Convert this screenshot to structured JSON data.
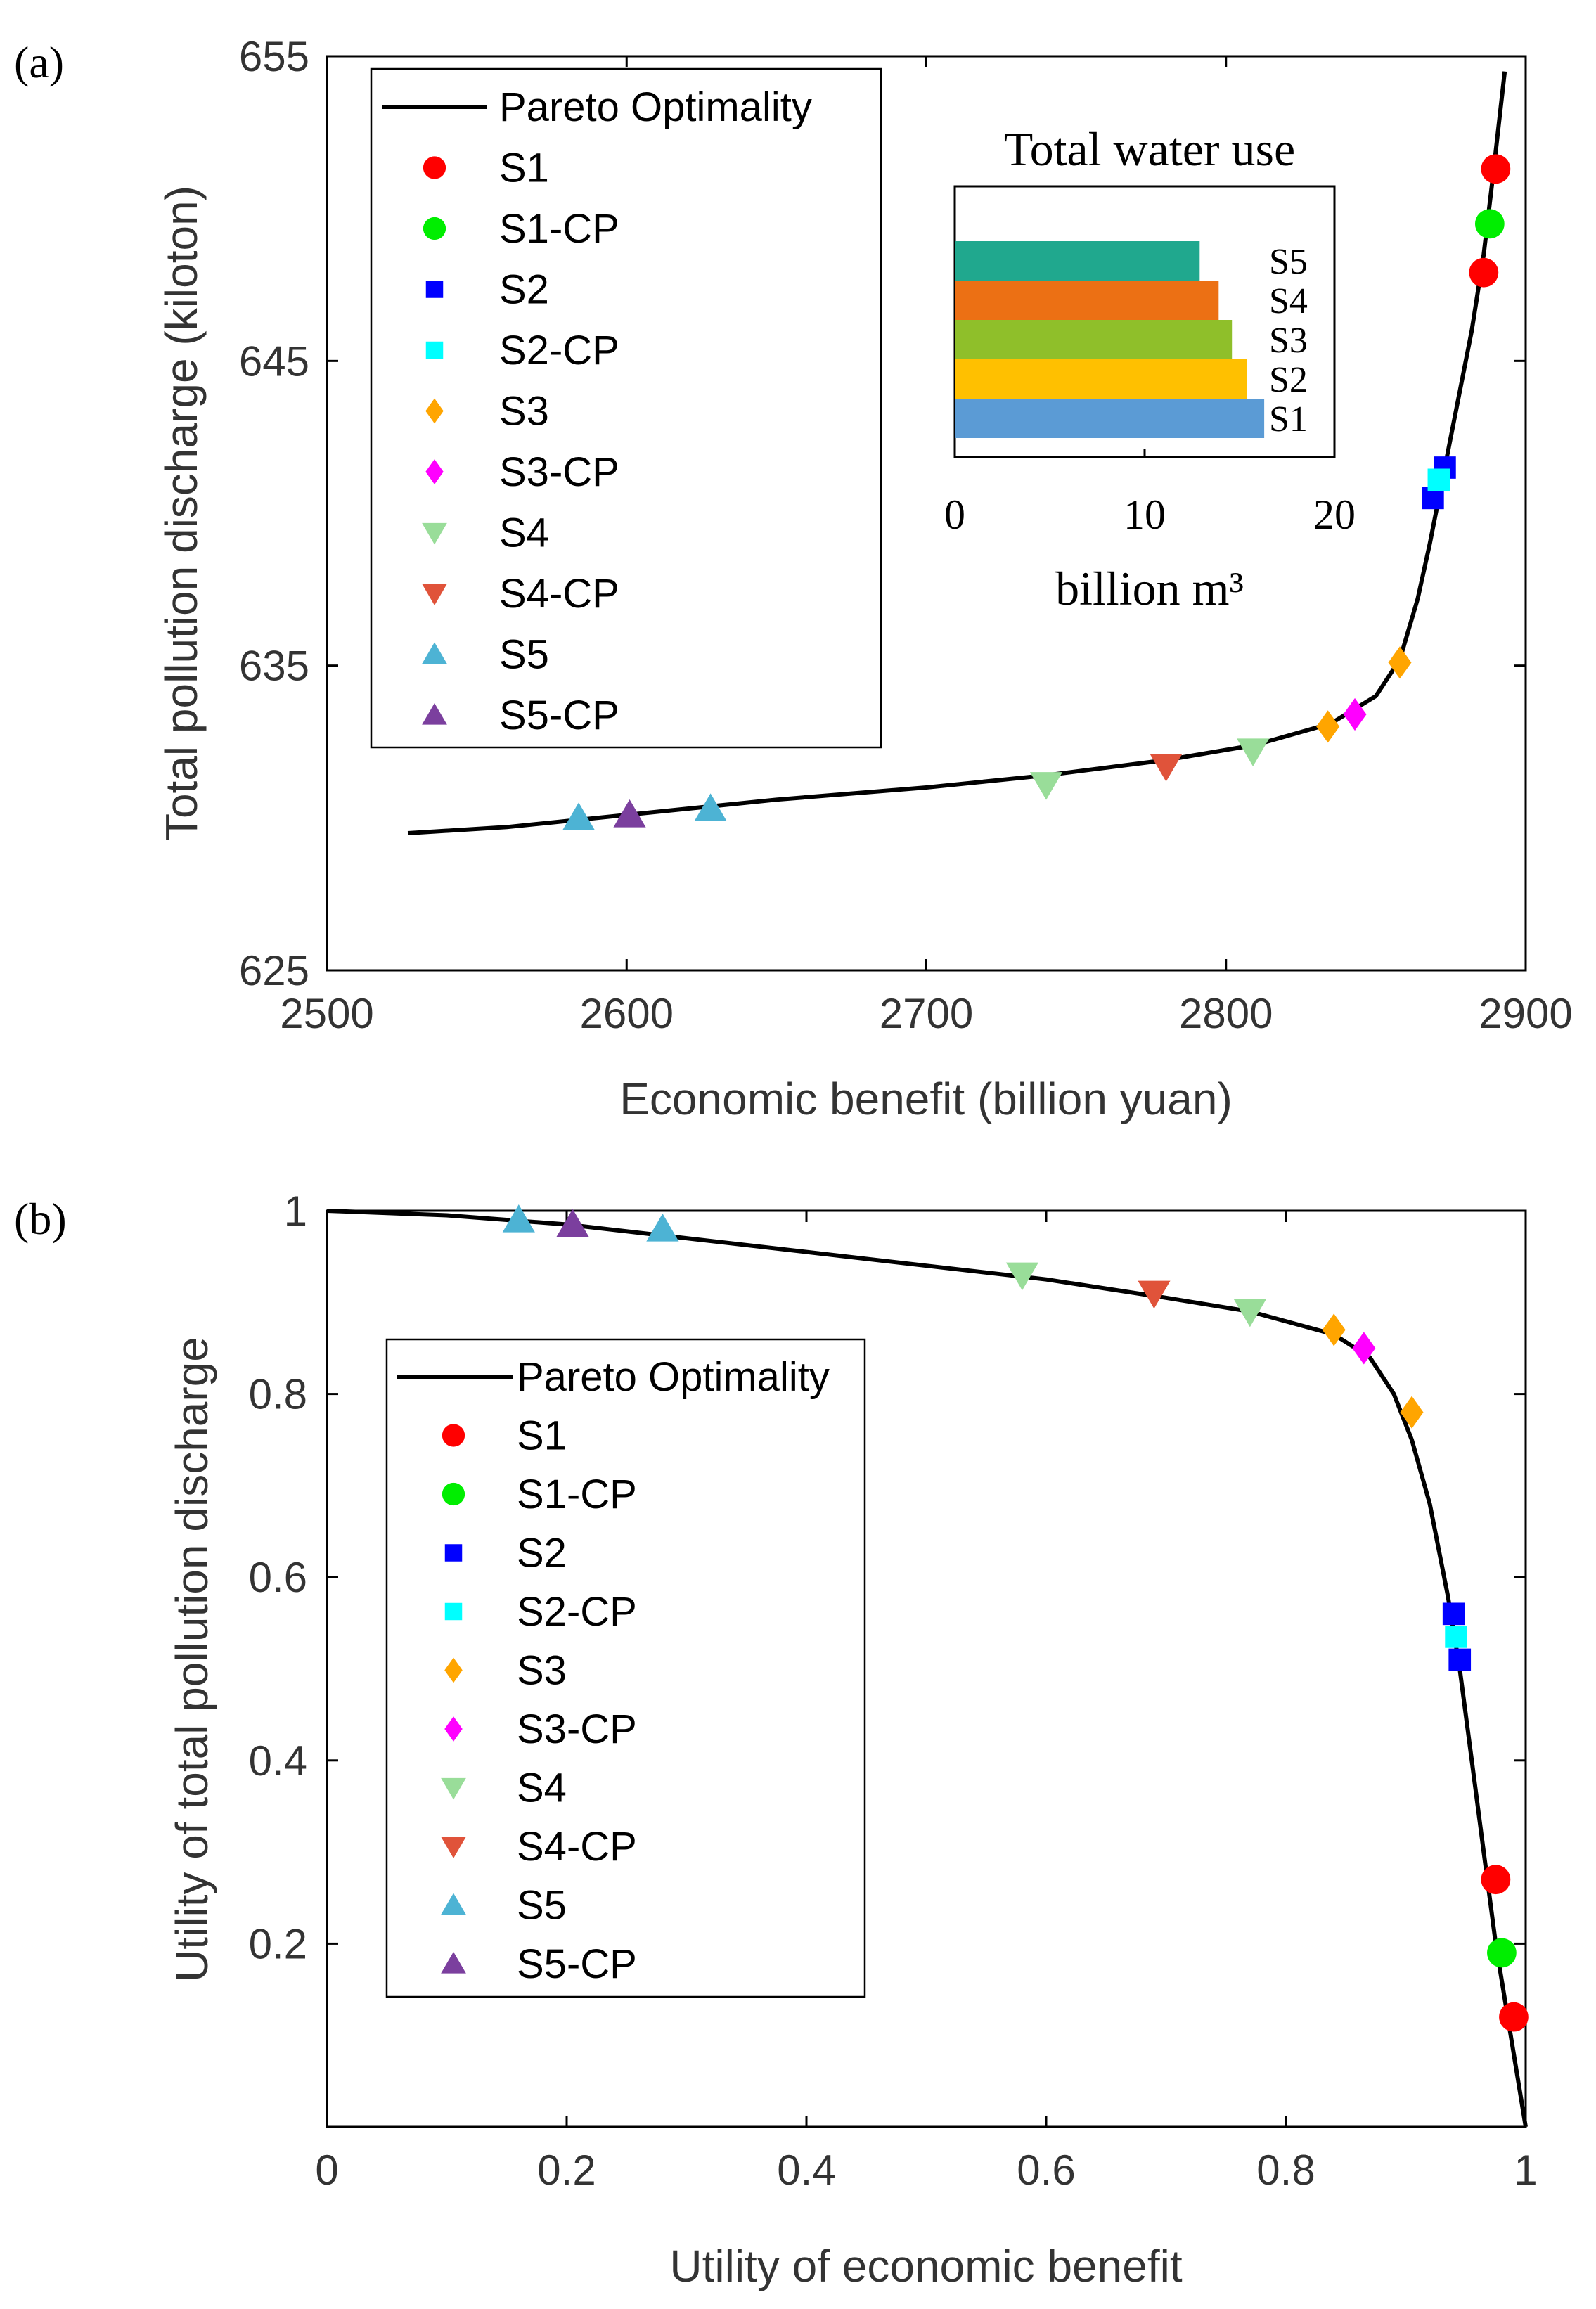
{
  "chart_data": [
    {
      "panel": "(a)",
      "type": "scatter",
      "xlabel": "Economic benefit (billion yuan)",
      "ylabel": "Total pollution discharge (kiloton)",
      "xlim": [
        2500,
        2900
      ],
      "ylim": [
        625,
        655
      ],
      "xticks": [
        "2500",
        "2600",
        "2700",
        "2800",
        "2900"
      ],
      "yticks": [
        "625",
        "635",
        "645",
        "655"
      ],
      "grid": false,
      "legend_position": "top-left",
      "curve": {
        "name": "Pareto Optimality",
        "points": [
          [
            2527,
            629.5
          ],
          [
            2560,
            629.7
          ],
          [
            2600,
            630.1
          ],
          [
            2650,
            630.6
          ],
          [
            2700,
            631.0
          ],
          [
            2740,
            631.4
          ],
          [
            2780,
            631.9
          ],
          [
            2810,
            632.4
          ],
          [
            2835,
            633.1
          ],
          [
            2850,
            634.0
          ],
          [
            2858,
            635.2
          ],
          [
            2864,
            637.2
          ],
          [
            2868,
            639.0
          ],
          [
            2872,
            641.0
          ],
          [
            2877,
            643.5
          ],
          [
            2882,
            646.0
          ],
          [
            2886,
            648.5
          ],
          [
            2889,
            651.0
          ],
          [
            2893,
            654.5
          ]
        ]
      },
      "series": [
        {
          "name": "S1",
          "marker": "circle",
          "color": "#ff0000",
          "points": [
            [
              2890,
              651.3
            ],
            [
              2886,
              647.9
            ]
          ]
        },
        {
          "name": "S1-CP",
          "marker": "circle",
          "color": "#00ee00",
          "points": [
            [
              2888,
              649.5
            ]
          ]
        },
        {
          "name": "S2",
          "marker": "square",
          "color": "#0000ff",
          "points": [
            [
              2873,
              641.5
            ],
            [
              2869,
              640.5
            ]
          ]
        },
        {
          "name": "S2-CP",
          "marker": "square",
          "color": "#00ffff",
          "points": [
            [
              2871,
              641.1
            ]
          ]
        },
        {
          "name": "S3",
          "marker": "diamond",
          "color": "#ffa500",
          "points": [
            [
              2858,
              635.1
            ],
            [
              2834,
              633.0
            ]
          ]
        },
        {
          "name": "S3-CP",
          "marker": "diamond",
          "color": "#ff00ff",
          "points": [
            [
              2843,
              633.4
            ]
          ]
        },
        {
          "name": "S4",
          "marker": "triangle-down",
          "color": "#99dd99",
          "points": [
            [
              2740,
              631.1
            ],
            [
              2809,
              632.2
            ]
          ]
        },
        {
          "name": "S4-CP",
          "marker": "triangle-down",
          "color": "#e0533a",
          "points": [
            [
              2780,
              631.7
            ]
          ]
        },
        {
          "name": "S5",
          "marker": "triangle-up",
          "color": "#4db3d4",
          "points": [
            [
              2584,
              630.0
            ],
            [
              2628,
              630.3
            ]
          ]
        },
        {
          "name": "S5-CP",
          "marker": "triangle-up",
          "color": "#7b3f9e",
          "points": [
            [
              2601,
              630.1
            ]
          ]
        }
      ],
      "inset": {
        "type": "bar",
        "orientation": "horizontal",
        "title": "Total water use",
        "xlabel": "billion m³",
        "xlim": [
          0,
          20
        ],
        "xticks": [
          "0",
          "10",
          "20"
        ],
        "categories": [
          "S1",
          "S2",
          "S3",
          "S4",
          "S5"
        ],
        "values": [
          16.3,
          15.4,
          14.6,
          13.9,
          12.9
        ],
        "colors": [
          "#5b9bd5",
          "#ffc000",
          "#8fbf2a",
          "#ec7014",
          "#20a88e"
        ]
      }
    },
    {
      "panel": "(b)",
      "type": "scatter",
      "xlabel": "Utility of economic benefit",
      "ylabel": "Utility of total pollution discharge",
      "xlim": [
        0,
        1
      ],
      "ylim": [
        0,
        1
      ],
      "xticks": [
        "0",
        "0.2",
        "0.4",
        "0.6",
        "0.8",
        "1"
      ],
      "yticks": [
        "0.2",
        "0.4",
        "0.6",
        "0.8",
        "1"
      ],
      "grid": false,
      "legend_position": "middle-left",
      "curve": {
        "name": "Pareto Optimality",
        "points": [
          [
            0,
            1.0
          ],
          [
            0.1,
            0.995
          ],
          [
            0.2,
            0.985
          ],
          [
            0.3,
            0.97
          ],
          [
            0.4,
            0.955
          ],
          [
            0.5,
            0.94
          ],
          [
            0.6,
            0.925
          ],
          [
            0.7,
            0.905
          ],
          [
            0.77,
            0.89
          ],
          [
            0.84,
            0.865
          ],
          [
            0.87,
            0.84
          ],
          [
            0.89,
            0.8
          ],
          [
            0.905,
            0.75
          ],
          [
            0.92,
            0.68
          ],
          [
            0.935,
            0.58
          ],
          [
            0.945,
            0.5
          ],
          [
            0.955,
            0.4
          ],
          [
            0.965,
            0.3
          ],
          [
            0.975,
            0.2
          ],
          [
            0.985,
            0.12
          ],
          [
            1.0,
            0.0
          ]
        ]
      },
      "series": [
        {
          "name": "S1",
          "marker": "circle",
          "color": "#ff0000",
          "points": [
            [
              0.975,
              0.27
            ],
            [
              0.99,
              0.12
            ]
          ]
        },
        {
          "name": "S1-CP",
          "marker": "circle",
          "color": "#00ee00",
          "points": [
            [
              0.98,
              0.19
            ]
          ]
        },
        {
          "name": "S2",
          "marker": "square",
          "color": "#0000ff",
          "points": [
            [
              0.94,
              0.56
            ],
            [
              0.945,
              0.51
            ]
          ]
        },
        {
          "name": "S2-CP",
          "marker": "square",
          "color": "#00ffff",
          "points": [
            [
              0.942,
              0.535
            ]
          ]
        },
        {
          "name": "S3",
          "marker": "diamond",
          "color": "#ffa500",
          "points": [
            [
              0.84,
              0.87
            ],
            [
              0.905,
              0.78
            ]
          ]
        },
        {
          "name": "S3-CP",
          "marker": "diamond",
          "color": "#ff00ff",
          "points": [
            [
              0.865,
              0.85
            ]
          ]
        },
        {
          "name": "S4",
          "marker": "triangle-down",
          "color": "#99dd99",
          "points": [
            [
              0.58,
              0.93
            ],
            [
              0.77,
              0.89
            ]
          ]
        },
        {
          "name": "S4-CP",
          "marker": "triangle-down",
          "color": "#e0533a",
          "points": [
            [
              0.69,
              0.91
            ]
          ]
        },
        {
          "name": "S5",
          "marker": "triangle-up",
          "color": "#4db3d4",
          "points": [
            [
              0.16,
              0.99
            ],
            [
              0.28,
              0.98
            ]
          ]
        },
        {
          "name": "S5-CP",
          "marker": "triangle-up",
          "color": "#7b3f9e",
          "points": [
            [
              0.205,
              0.985
            ]
          ]
        }
      ]
    }
  ]
}
